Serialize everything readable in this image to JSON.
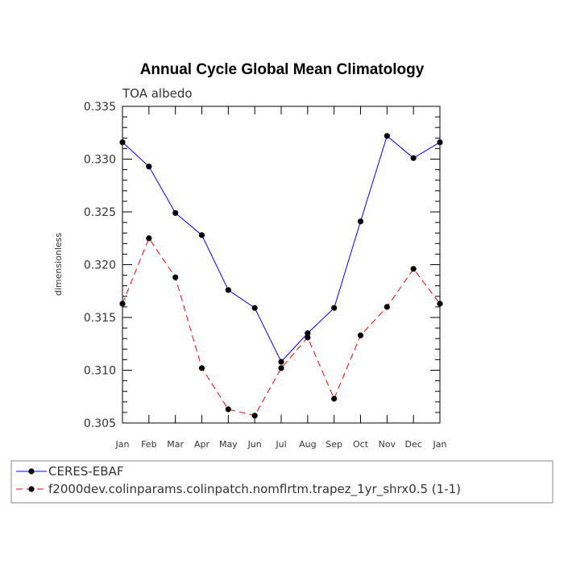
{
  "chart_data": {
    "type": "line",
    "title": "Annual Cycle Global Mean Climatology",
    "subtitle": "TOA albedo",
    "xlabel": "",
    "ylabel": "dimensionless",
    "categories": [
      "Jan",
      "Feb",
      "Mar",
      "Apr",
      "May",
      "Jun",
      "Jul",
      "Aug",
      "Sep",
      "Oct",
      "Nov",
      "Dec",
      "Jan"
    ],
    "ylim": [
      0.305,
      0.335
    ],
    "yticks": [
      0.305,
      0.31,
      0.315,
      0.32,
      0.325,
      0.33,
      0.335
    ],
    "ytick_labels": [
      "0.305",
      "0.310",
      "0.315",
      "0.320",
      "0.325",
      "0.330",
      "0.335"
    ],
    "legend_position": "bottom",
    "series": [
      {
        "name": "CERES-EBAF",
        "color": "#0000ff",
        "dash": "solid",
        "values": [
          0.3316,
          0.3293,
          0.3249,
          0.3228,
          0.3176,
          0.3159,
          0.3108,
          0.3135,
          0.3159,
          0.3241,
          0.3322,
          0.3301,
          0.3316
        ]
      },
      {
        "name": "f2000dev.colinparams.colinpatch.nomflrtm.trapez_1yr_shrx0.5 (1-1)",
        "color": "#ff0000",
        "dash": "dashed",
        "values": [
          0.3163,
          0.3225,
          0.3188,
          0.3102,
          0.3063,
          0.3057,
          0.3102,
          0.3131,
          0.3073,
          0.3133,
          0.316,
          0.3196,
          0.3163
        ]
      }
    ]
  }
}
